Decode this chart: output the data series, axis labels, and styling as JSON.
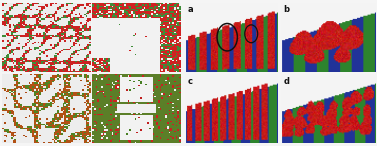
{
  "figure_width": 3.77,
  "figure_height": 1.46,
  "dpi": 100,
  "background_color": "#f5f5f5",
  "panel_labels": [
    "a",
    "b",
    "c",
    "d"
  ],
  "label_fontsize": 6,
  "label_color": "#111111",
  "blue_stripe": [
    0.13,
    0.2,
    0.6
  ],
  "green_stripe": [
    0.18,
    0.52,
    0.18
  ],
  "red_particle": [
    0.78,
    0.1,
    0.1
  ],
  "white_bg": [
    0.96,
    0.96,
    0.96
  ],
  "axes_positions": {
    "tl": [
      0.005,
      0.51,
      0.235,
      0.47
    ],
    "tr": [
      0.245,
      0.51,
      0.235,
      0.47
    ],
    "bl": [
      0.005,
      0.02,
      0.235,
      0.47
    ],
    "br": [
      0.245,
      0.02,
      0.235,
      0.47
    ],
    "a": [
      0.49,
      0.51,
      0.245,
      0.47
    ],
    "b": [
      0.745,
      0.51,
      0.25,
      0.47
    ],
    "c": [
      0.49,
      0.02,
      0.245,
      0.47
    ],
    "d": [
      0.745,
      0.02,
      0.25,
      0.47
    ]
  }
}
